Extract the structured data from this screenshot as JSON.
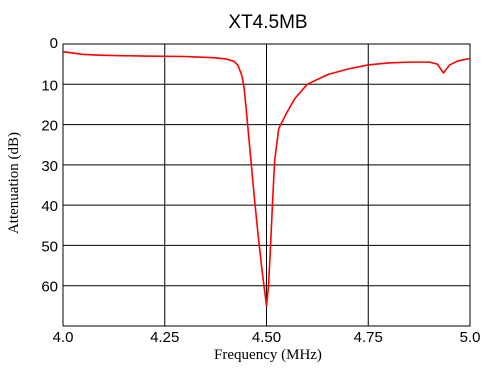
{
  "chart_data": {
    "type": "line",
    "title": "XT4.5MB",
    "xlabel": "Frequency (MHz)",
    "ylabel": "Attenuation (dB)",
    "xlim": [
      4.0,
      5.0
    ],
    "ylim": [
      0,
      70
    ],
    "y_inverted": true,
    "grid": true,
    "x_ticks": [
      4.0,
      4.25,
      4.5,
      4.75,
      5.0
    ],
    "x_tick_labels": [
      "4.0",
      "4.25",
      "4.50",
      "4.75",
      "5.0"
    ],
    "y_ticks": [
      0,
      10,
      20,
      30,
      40,
      50,
      60
    ],
    "y_tick_labels": [
      "0",
      "10",
      "20",
      "30",
      "40",
      "50",
      "60"
    ],
    "colors": {
      "series": "#ff0000",
      "grid": "#000000",
      "frame": "#000000"
    },
    "series": [
      {
        "x": [
          4.0,
          4.05,
          4.1,
          4.2,
          4.3,
          4.37,
          4.4,
          4.42,
          4.43,
          4.44,
          4.445,
          4.45,
          4.46,
          4.47,
          4.48,
          4.49,
          4.495,
          4.5,
          4.505,
          4.51,
          4.515,
          4.52,
          4.53,
          4.55,
          4.57,
          4.6,
          4.65,
          4.7,
          4.75,
          4.8,
          4.85,
          4.9,
          4.92,
          4.93,
          4.935,
          4.94,
          4.95,
          4.97,
          5.0
        ],
        "y": [
          1.9,
          2.6,
          2.8,
          3.0,
          3.1,
          3.4,
          3.7,
          4.3,
          5.3,
          8.0,
          11.0,
          16.0,
          27.0,
          38.0,
          48.0,
          57.0,
          61.0,
          65.0,
          60.0,
          50.0,
          39.0,
          29.0,
          21.0,
          17.0,
          13.5,
          10.0,
          7.6,
          6.2,
          5.2,
          4.7,
          4.5,
          4.5,
          5.0,
          6.5,
          7.2,
          6.5,
          5.2,
          4.2,
          3.6
        ]
      }
    ]
  }
}
